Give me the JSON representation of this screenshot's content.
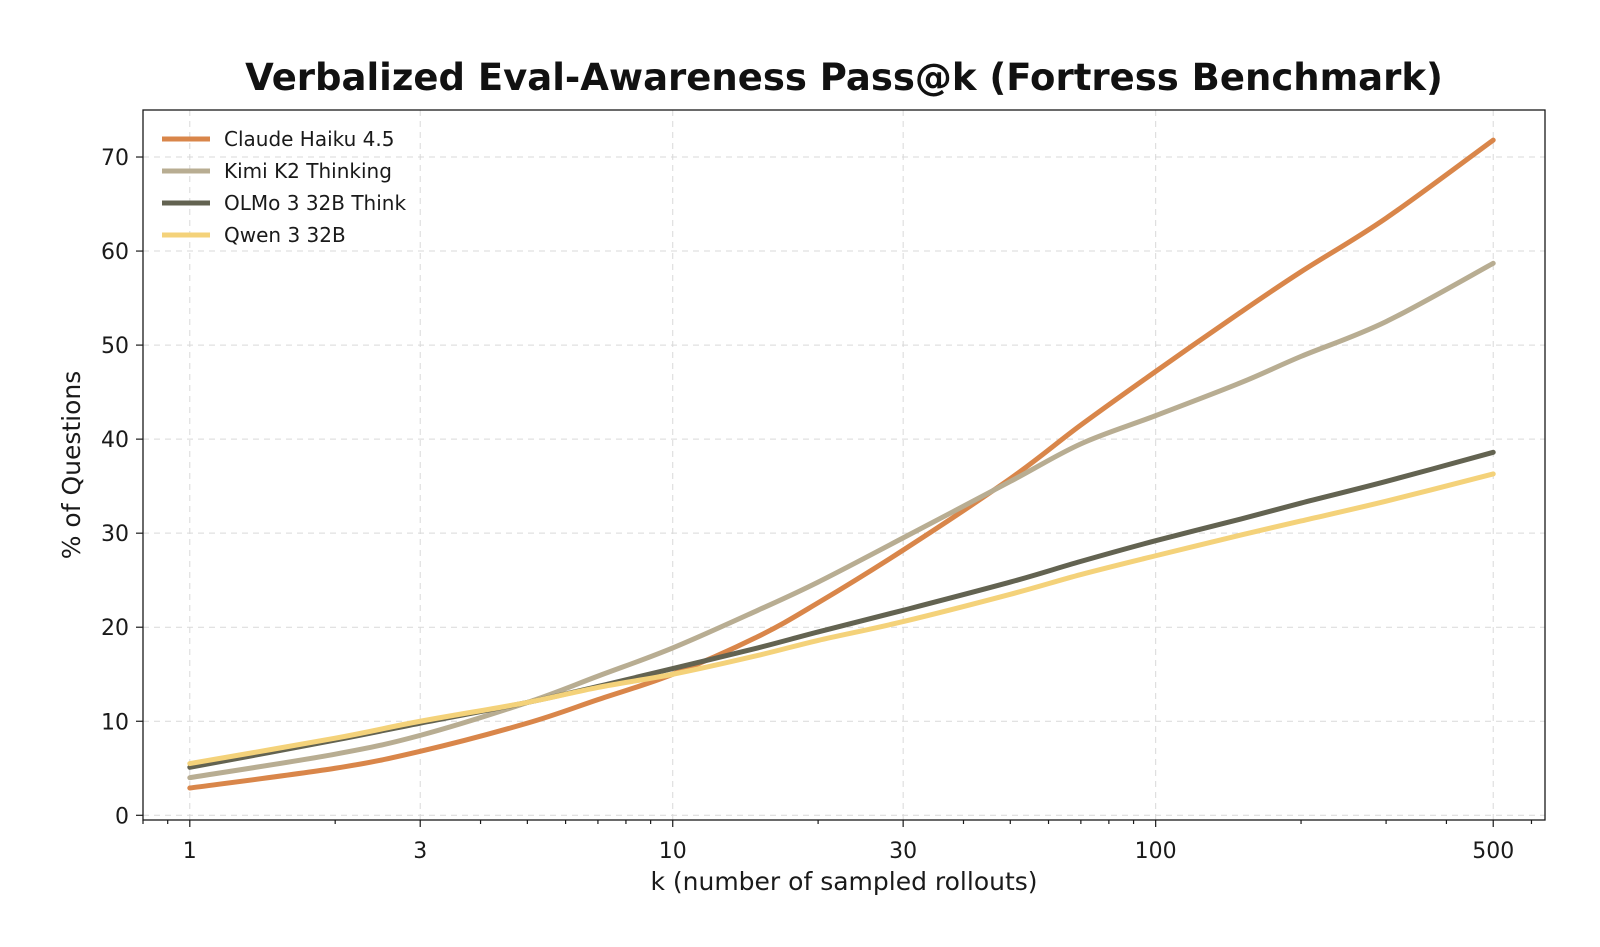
{
  "chart_data": {
    "type": "line",
    "title": "Verbalized Eval-Awareness Pass@k (Fortress Benchmark)",
    "xlabel": "k (number of sampled rollouts)",
    "ylabel": "% of Questions",
    "x_scale": "log",
    "xlim": [
      0.8,
      640
    ],
    "ylim": [
      -0.5,
      75
    ],
    "x_ticks": [
      1,
      3,
      10,
      30,
      100,
      500
    ],
    "x_tick_labels": [
      "1",
      "3",
      "10",
      "30",
      "100",
      "500"
    ],
    "y_ticks": [
      0,
      10,
      20,
      30,
      40,
      50,
      60,
      70
    ],
    "y_tick_labels": [
      "0",
      "10",
      "20",
      "30",
      "40",
      "50",
      "60",
      "70"
    ],
    "grid": true,
    "legend_position": "top-left",
    "x": [
      1,
      2,
      3,
      5,
      7,
      10,
      15,
      20,
      30,
      50,
      70,
      100,
      150,
      200,
      300,
      500
    ],
    "series": [
      {
        "name": "Claude Haiku 4.5",
        "color": "#d9864a",
        "values": [
          2.9,
          5.0,
          6.8,
          9.8,
          12.3,
          15.0,
          19.0,
          22.6,
          28.2,
          35.8,
          41.5,
          47.2,
          53.5,
          57.8,
          63.5,
          71.8
        ]
      },
      {
        "name": "Kimi K2 Thinking",
        "color": "#b8ad92",
        "values": [
          4.0,
          6.5,
          8.5,
          12.0,
          14.8,
          17.8,
          21.8,
          24.8,
          29.5,
          35.5,
          39.5,
          42.5,
          46.0,
          48.8,
          52.5,
          58.7
        ]
      },
      {
        "name": "OLMo 3 32B Think",
        "color": "#636351",
        "values": [
          5.1,
          8.0,
          9.8,
          12.0,
          13.7,
          15.6,
          17.8,
          19.5,
          21.8,
          24.8,
          27.0,
          29.2,
          31.5,
          33.2,
          35.5,
          38.6
        ]
      },
      {
        "name": "Qwen 3 32B",
        "color": "#f4d27a",
        "values": [
          5.5,
          8.2,
          10.0,
          12.0,
          13.6,
          15.0,
          17.0,
          18.6,
          20.6,
          23.5,
          25.6,
          27.6,
          29.8,
          31.3,
          33.4,
          36.3
        ]
      }
    ]
  }
}
